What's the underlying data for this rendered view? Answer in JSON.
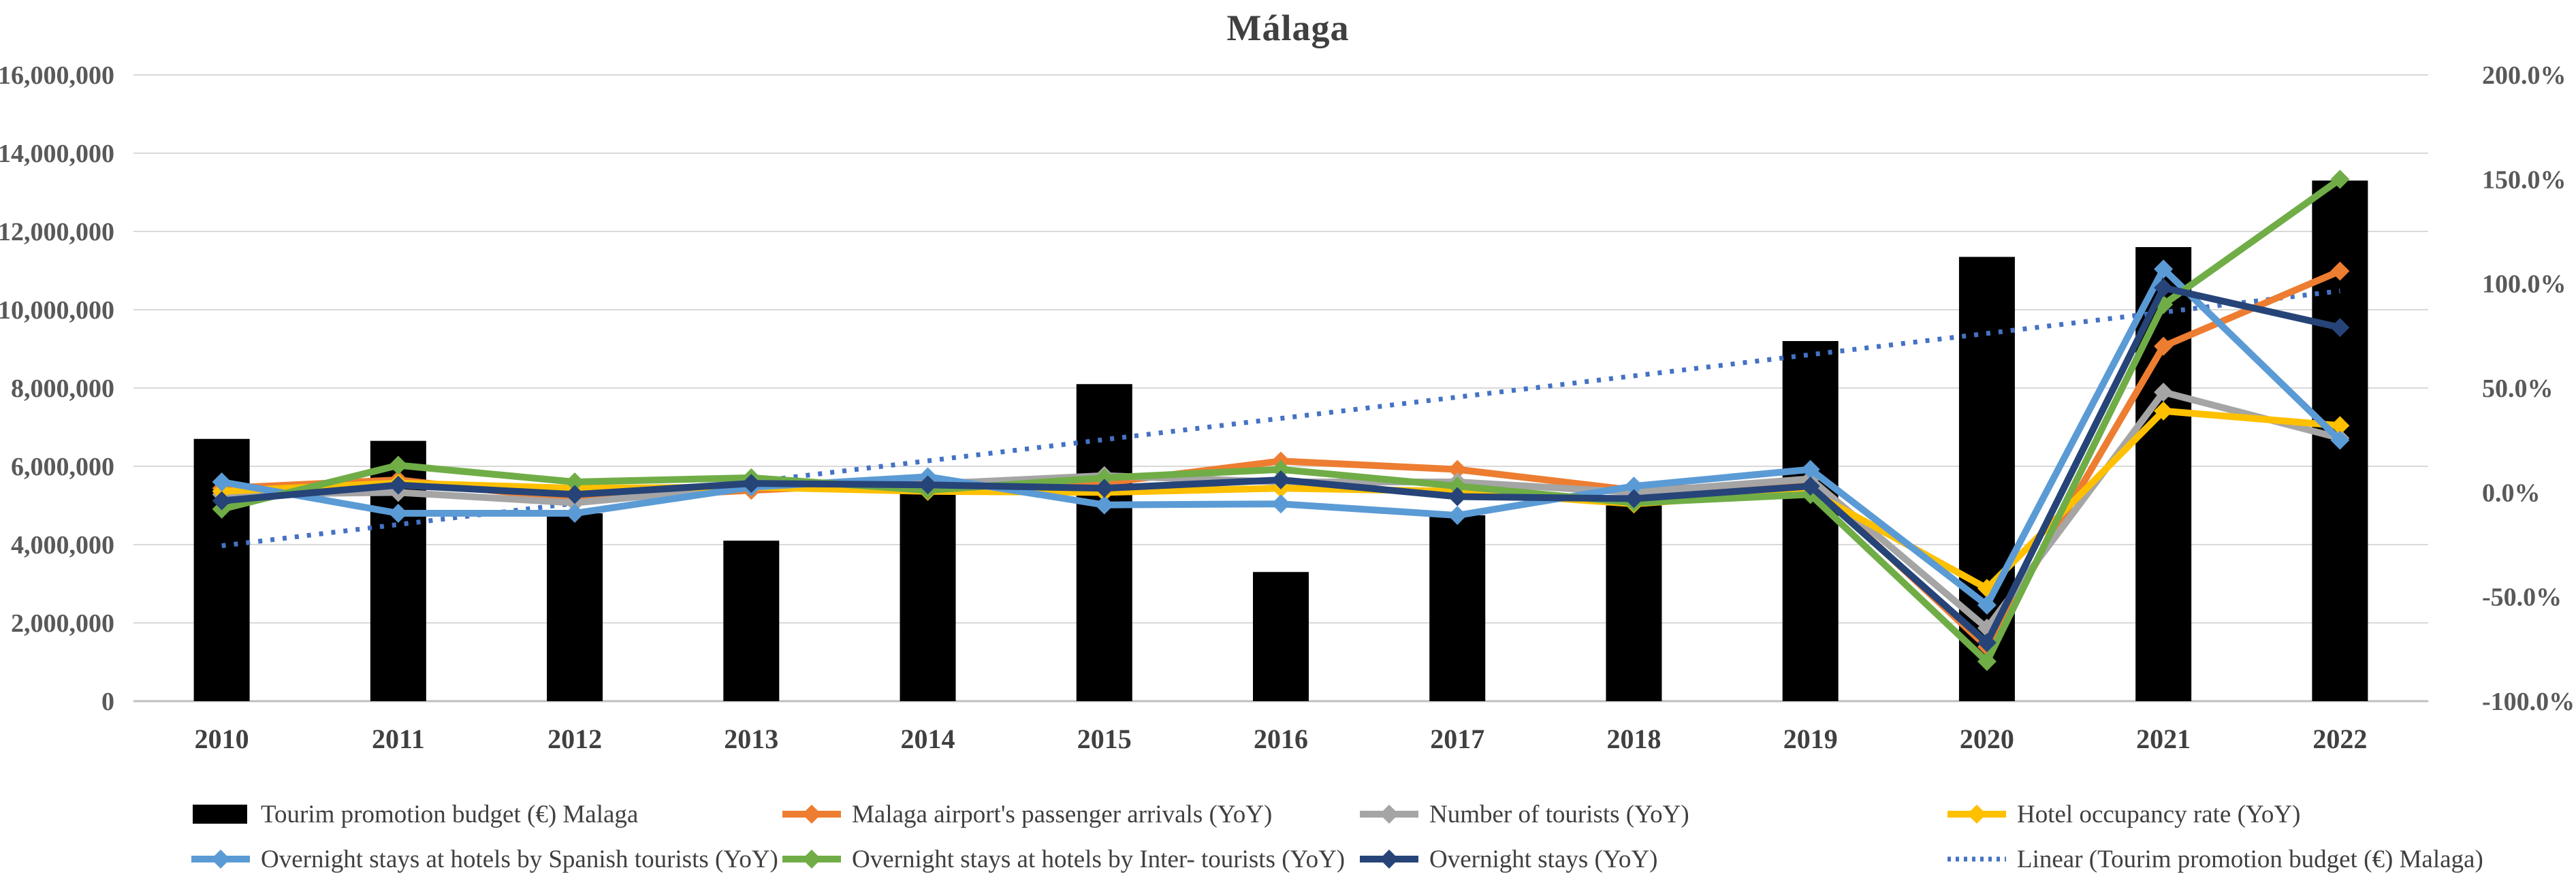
{
  "title": "Málaga",
  "chart_data": {
    "type": "combo",
    "title": "Málaga",
    "categories": [
      "2010",
      "2011",
      "2012",
      "2013",
      "2014",
      "2015",
      "2016",
      "2017",
      "2018",
      "2019",
      "2020",
      "2021",
      "2022"
    ],
    "left_axis": {
      "min": 0,
      "max": 16000000,
      "step": 2000000,
      "tick_labels": [
        "0",
        "2,000,000",
        "4,000,000",
        "6,000,000",
        "8,000,000",
        "10,000,000",
        "12,000,000",
        "14,000,000",
        "16,000,000"
      ]
    },
    "right_axis": {
      "min": -100,
      "max": 200,
      "step": 50,
      "tick_labels": [
        "-100.0%",
        "-50.0%",
        "0.0%",
        "50.0%",
        "100.0%",
        "150.0%",
        "200.0%"
      ]
    },
    "grid": true,
    "legend_position": "bottom",
    "bar_series": {
      "name": "Tourim promotion budget (€) Malaga",
      "color": "#000000",
      "axis": "left",
      "values": [
        6700000,
        6650000,
        4800000,
        4100000,
        5400000,
        8100000,
        3300000,
        4750000,
        5000000,
        9200000,
        11350000,
        11600000,
        13300000
      ]
    },
    "line_series": [
      {
        "name": "Malaga airport's passenger arrivals (YoY)",
        "color": "#ED7D31",
        "axis": "right",
        "values": [
          2,
          6,
          -3.5,
          1,
          5,
          4.5,
          15,
          11,
          1,
          4.5,
          -74,
          70,
          106
        ]
      },
      {
        "name": "Number of tourists (YoY)",
        "color": "#A5A5A5",
        "axis": "right",
        "values": [
          -1,
          0,
          -5,
          3,
          4,
          8,
          5,
          5,
          0,
          6.5,
          -65,
          48,
          26
        ]
      },
      {
        "name": "Hotel occupancy rate (YoY)",
        "color": "#FFC000",
        "axis": "right",
        "values": [
          0.5,
          4.5,
          2,
          2.5,
          0.5,
          0,
          2,
          0.5,
          -5.5,
          0.5,
          -46,
          39,
          32
        ]
      },
      {
        "name": "Overnight stays at hotels by Spanish tourists (YoY)",
        "color": "#5B9BD5",
        "axis": "right",
        "values": [
          5,
          -10,
          -10,
          2.5,
          7.5,
          -6,
          -5.5,
          -11,
          3,
          11,
          -54,
          107,
          25
        ]
      },
      {
        "name": "Overnight stays at hotels by Inter- tourists (YoY)",
        "color": "#70AD47",
        "axis": "right",
        "values": [
          -8,
          13,
          5,
          7,
          1,
          7,
          11,
          3,
          -5,
          -1,
          -81,
          90,
          150
        ]
      },
      {
        "name": "Overnight stays (YoY)",
        "color": "#264478",
        "axis": "right",
        "values": [
          -4,
          3.5,
          -1,
          4.3,
          3.6,
          2,
          6,
          -2,
          -3,
          3,
          -72,
          98,
          79
        ]
      }
    ],
    "trendline": {
      "name": "Linear (Tourim promotion budget (€) Malaga)",
      "color": "#4472C4",
      "axis": "left",
      "start_value": 3970000,
      "end_value": 10480000
    }
  },
  "legend": {
    "rows": [
      [
        {
          "label": "Tourim promotion budget (€) Malaga",
          "swatch": "bar",
          "color": "#000000"
        },
        {
          "label": "Malaga airport's passenger arrivals (YoY)",
          "swatch": "line",
          "color": "#ED7D31"
        },
        {
          "label": "Number of tourists (YoY)",
          "swatch": "line",
          "color": "#A5A5A5"
        },
        {
          "label": "Hotel occupancy rate (YoY)",
          "swatch": "line",
          "color": "#FFC000"
        }
      ],
      [
        {
          "label": "Overnight stays at hotels by Spanish tourists (YoY)",
          "swatch": "line",
          "color": "#5B9BD5"
        },
        {
          "label": "Overnight stays at hotels by Inter- tourists (YoY)",
          "swatch": "line",
          "color": "#70AD47"
        },
        {
          "label": "Overnight stays (YoY)",
          "swatch": "line",
          "color": "#264478"
        },
        {
          "label": "Linear (Tourim promotion budget (€) Malaga)",
          "swatch": "dotted",
          "color": "#4472C4"
        }
      ]
    ]
  },
  "colors": {
    "gridline": "#D9D9D9",
    "axis_line": "#BFBFBF",
    "tick_text": "#595959",
    "category_text": "#404040"
  }
}
